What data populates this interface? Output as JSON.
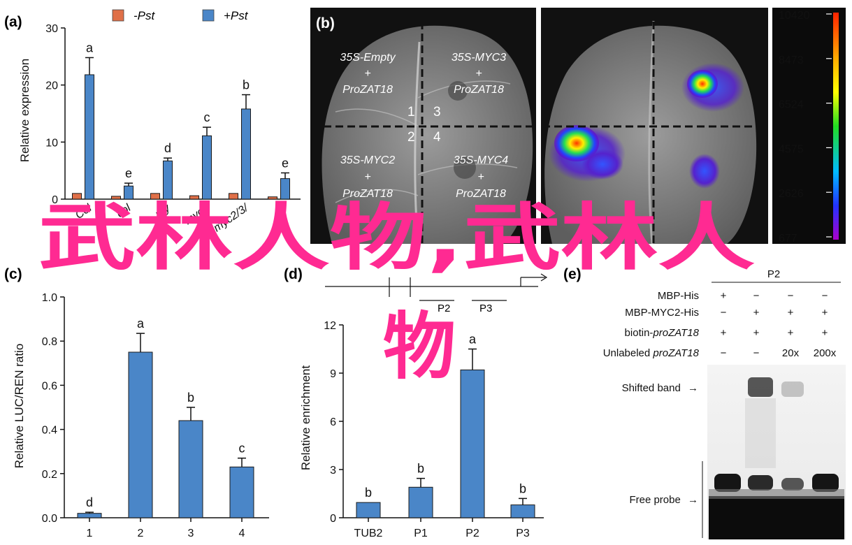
{
  "panels": {
    "a": "(a)",
    "b": "(b)",
    "c": "(c)",
    "d": "(d)",
    "e": "(e)"
  },
  "overlay_text": {
    "line1": "武林人物,武林人",
    "line2": "物"
  },
  "colors": {
    "bar_blue": "#4a86c8",
    "bar_orange": "#e07048",
    "overlay_pink": "#ff2a92"
  },
  "chart_data": [
    {
      "id": "a",
      "type": "bar",
      "ylabel": "Relative expression",
      "ylim": [
        0,
        30
      ],
      "yticks": [
        "0",
        "10",
        "20",
        "30"
      ],
      "legend": [
        "-Pst",
        "+Pst"
      ],
      "categories": [
        "Col",
        "col",
        "myc2",
        "myc3",
        "myc4",
        "myc2/3/4"
      ],
      "visible_category_labels": [
        "Col",
        "col",
        "my",
        "myc4",
        "myc2/3/"
      ],
      "series": [
        {
          "name": "-Pst",
          "values": [
            1,
            0.5,
            1,
            0.6,
            1,
            0.4
          ],
          "errors": [
            0.2,
            0.1,
            0.2,
            0.1,
            0.2,
            0.1
          ]
        },
        {
          "name": "+Pst",
          "values": [
            21.8,
            2.3,
            6.7,
            11.1,
            15.8,
            3.6
          ],
          "errors": [
            3.0,
            0.5,
            0.5,
            1.5,
            2.5,
            1.0
          ]
        }
      ],
      "letters": [
        "a",
        "e",
        "d",
        "c",
        "b",
        "e"
      ]
    },
    {
      "id": "c",
      "type": "bar",
      "ylabel": "Relative LUC/REN ratio",
      "ylim": [
        0,
        1.0
      ],
      "yticks": [
        "0.0",
        "0.2",
        "0.4",
        "0.6",
        "0.8",
        "1.0"
      ],
      "categories": [
        "1",
        "2",
        "3",
        "4"
      ],
      "values": [
        0.02,
        0.75,
        0.44,
        0.23
      ],
      "errors": [
        0.005,
        0.085,
        0.06,
        0.04
      ],
      "letters": [
        "d",
        "a",
        "b",
        "c"
      ]
    },
    {
      "id": "d",
      "type": "bar",
      "ylabel": "Relative enrichment",
      "ylim": [
        0,
        12
      ],
      "yticks": [
        "0",
        "3",
        "6",
        "9",
        "12"
      ],
      "categories": [
        "TUB2",
        "P1",
        "P2",
        "P3"
      ],
      "values": [
        0.95,
        1.9,
        9.2,
        0.8
      ],
      "errors": [
        0,
        0.55,
        1.3,
        0.4
      ],
      "letters": [
        "b",
        "b",
        "a",
        "b"
      ],
      "region_labels": [
        "P2",
        "P3"
      ]
    }
  ],
  "leaf": {
    "quadrants": [
      {
        "name": "35S-Empty",
        "promoter": "ProZAT18"
      },
      {
        "name": "35S-MYC3",
        "promoter": "ProZAT18"
      },
      {
        "name": "35S-MYC2",
        "promoter": "ProZAT18"
      },
      {
        "name": "35S-MYC4",
        "promoter": "ProZAT18"
      }
    ],
    "plus": "+",
    "numbers": [
      "1",
      "3",
      "2",
      "4"
    ],
    "scale": [
      "10420",
      "8473",
      "6524",
      "4575",
      "2626",
      "677"
    ]
  },
  "emsa": {
    "probe": "P2",
    "rows": [
      {
        "label": "MBP-His",
        "italic_part": "",
        "cells": [
          "+",
          "−",
          "−",
          "−"
        ]
      },
      {
        "label": "MBP-MYC2-His",
        "italic_part": "",
        "cells": [
          "−",
          "+",
          "+",
          "+"
        ]
      },
      {
        "label": "biotin-",
        "italic_part": "proZAT18",
        "cells": [
          "+",
          "+",
          "+",
          "+"
        ]
      },
      {
        "label": "Unlabeled ",
        "italic_part": "proZAT18",
        "cells": [
          "−",
          "−",
          "20x",
          "200x"
        ]
      }
    ],
    "shifted_band": "Shifted band",
    "free_probe": "Free probe",
    "arrow": "→"
  }
}
